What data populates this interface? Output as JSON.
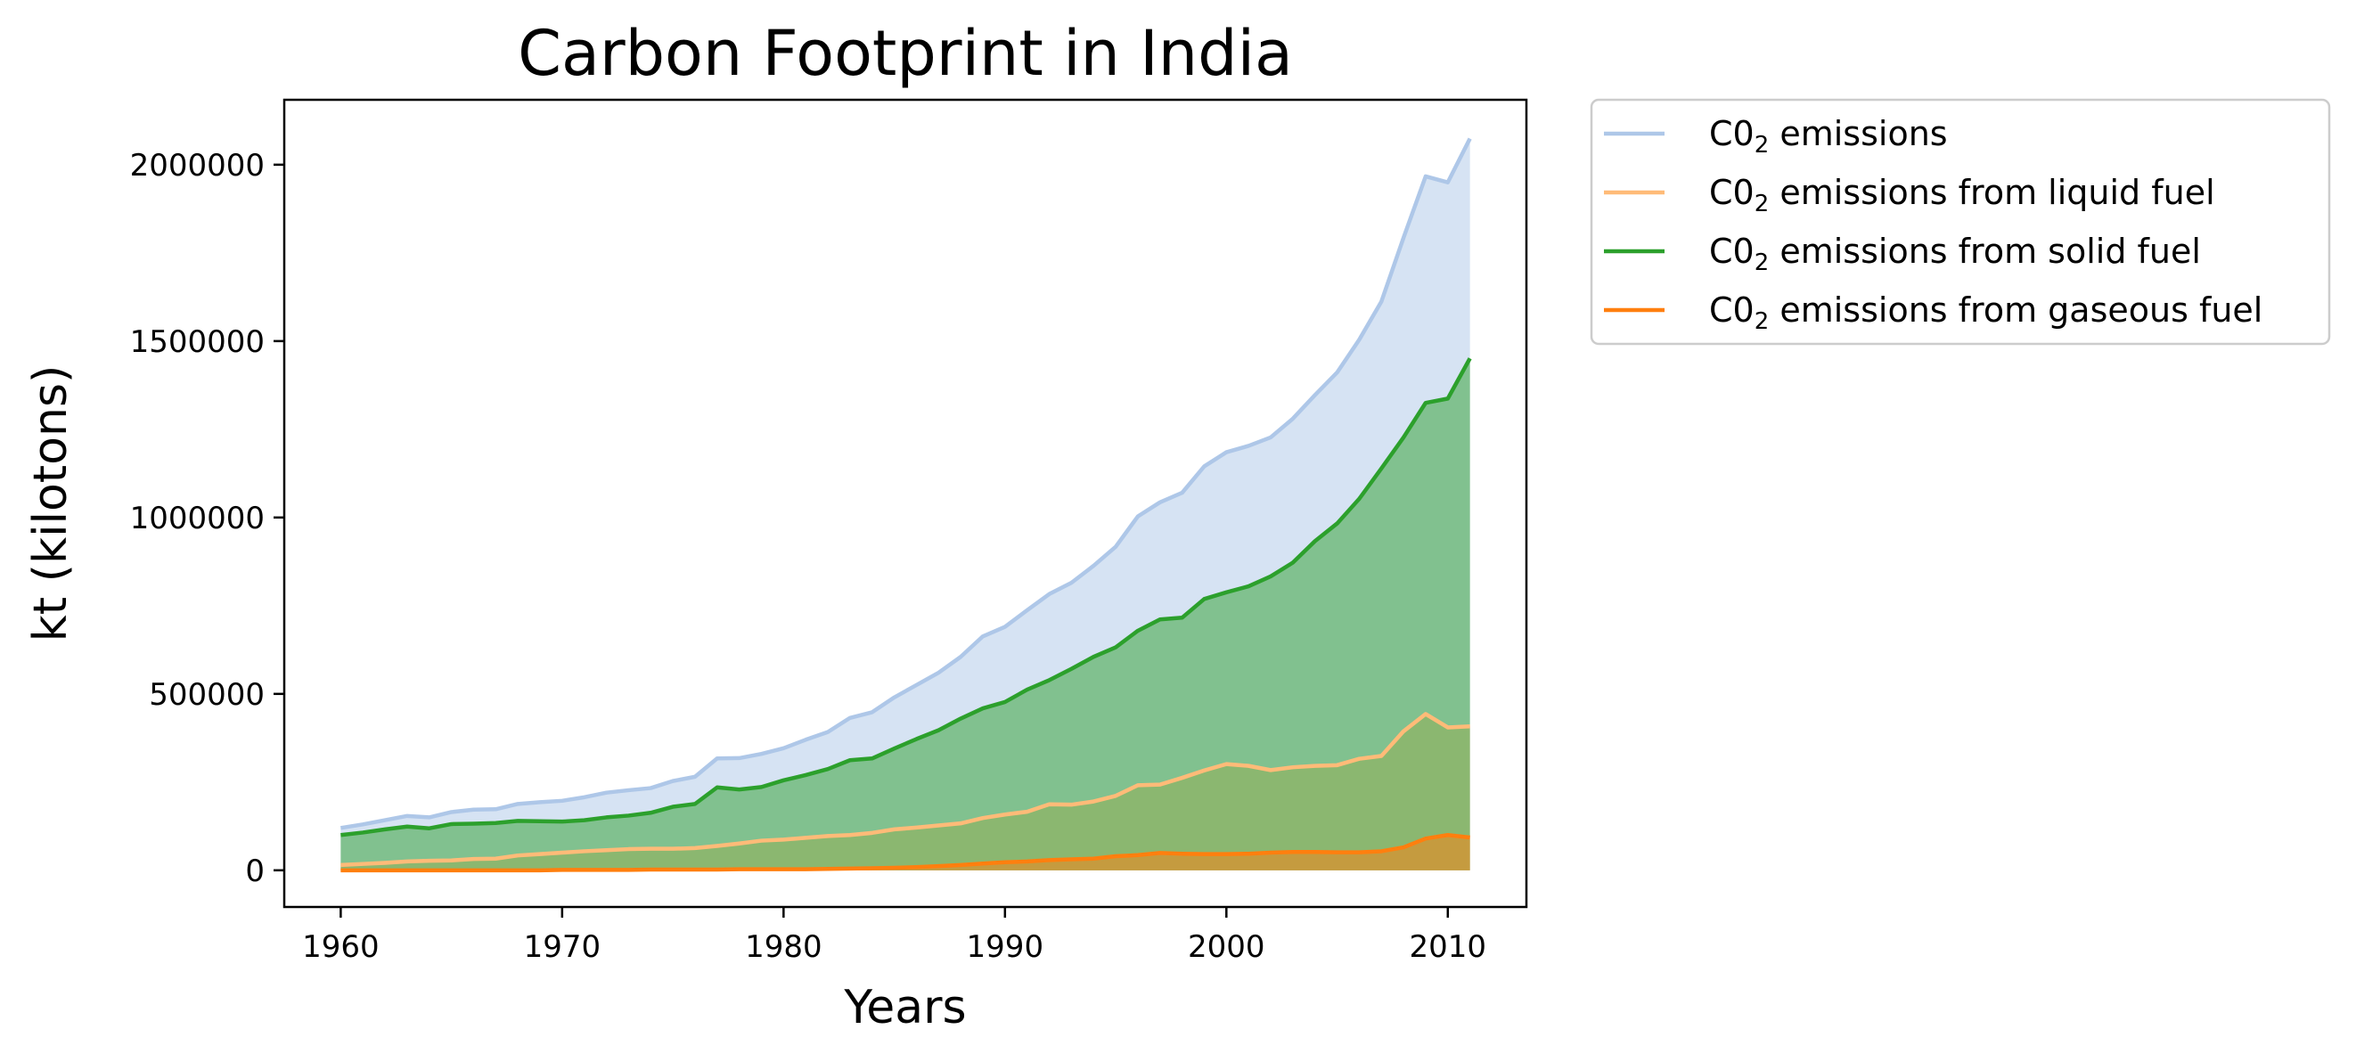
{
  "chart_data": {
    "type": "area",
    "title": "Carbon Footprint in India",
    "xlabel": "Years",
    "ylabel": "kt (kilotons)",
    "xlim": [
      1957.45,
      2013.55
    ],
    "ylim": [
      -104000,
      2184000
    ],
    "x_ticks": [
      1960,
      1970,
      1980,
      1990,
      2000,
      2010
    ],
    "y_ticks": [
      0,
      500000,
      1000000,
      1500000,
      2000000
    ],
    "grid": false,
    "legend_position": "outside-top-right",
    "x": [
      1960,
      1961,
      1962,
      1963,
      1964,
      1965,
      1966,
      1967,
      1968,
      1969,
      1970,
      1971,
      1972,
      1973,
      1974,
      1975,
      1976,
      1977,
      1978,
      1979,
      1980,
      1981,
      1982,
      1983,
      1984,
      1985,
      1986,
      1987,
      1988,
      1989,
      1990,
      1991,
      1992,
      1993,
      1994,
      1995,
      1996,
      1997,
      1998,
      1999,
      2000,
      2001,
      2002,
      2003,
      2004,
      2005,
      2006,
      2007,
      2008,
      2009,
      2010,
      2011
    ],
    "series": [
      {
        "name_prefix": "C0",
        "name_sub": "2",
        "name_suffix": " emissions",
        "color": "#aec7e8",
        "fill": "#aec7e8",
        "fill_opacity": 0.5,
        "values": [
          120000,
          130000,
          142000,
          154000,
          150000,
          165000,
          172000,
          173000,
          188000,
          193000,
          197000,
          207000,
          220000,
          227000,
          233000,
          253000,
          265000,
          317000,
          318000,
          330000,
          346000,
          370000,
          392000,
          432000,
          448000,
          490000,
          525000,
          560000,
          605000,
          663000,
          690000,
          737000,
          783000,
          815000,
          863000,
          917000,
          1003000,
          1043000,
          1070000,
          1145000,
          1185000,
          1203000,
          1227000,
          1280000,
          1347000,
          1411000,
          1504000,
          1612000,
          1793000,
          1967000,
          1950000,
          2074000
        ]
      },
      {
        "name_prefix": "C0",
        "name_sub": "2",
        "name_suffix": " emissions from liquid fuel",
        "color": "#ffbb78",
        "fill": "#ffbb78",
        "fill_opacity": 0.5,
        "values": [
          15000,
          18000,
          21000,
          25000,
          27000,
          28000,
          32000,
          33000,
          42000,
          46000,
          50000,
          54000,
          57000,
          60000,
          61000,
          61000,
          63000,
          69000,
          76000,
          84000,
          87000,
          92000,
          97000,
          100000,
          106000,
          116000,
          121000,
          127000,
          133000,
          148000,
          158000,
          166000,
          187000,
          186000,
          195000,
          211000,
          241000,
          243000,
          262000,
          283000,
          301000,
          296000,
          284000,
          292000,
          296000,
          298000,
          316000,
          324000,
          394000,
          443000,
          405000,
          408000
        ]
      },
      {
        "name_prefix": "C0",
        "name_sub": "2",
        "name_suffix": " emissions from solid fuel",
        "color": "#2ca02c",
        "fill": "#2ca02c",
        "fill_opacity": 0.5,
        "values": [
          100000,
          107000,
          116000,
          124000,
          119000,
          131000,
          132000,
          134000,
          140000,
          139000,
          138000,
          142000,
          150000,
          155000,
          163000,
          180000,
          188000,
          235000,
          229000,
          236000,
          255000,
          270000,
          287000,
          312000,
          317000,
          345000,
          372000,
          397000,
          430000,
          459000,
          477000,
          512000,
          539000,
          571000,
          605000,
          632000,
          679000,
          711000,
          716000,
          769000,
          788000,
          805000,
          833000,
          872000,
          933000,
          983000,
          1053000,
          1139000,
          1227000,
          1325000,
          1337000,
          1451000
        ]
      },
      {
        "name_prefix": "C0",
        "name_sub": "2",
        "name_suffix": " emissions from gaseous fuel",
        "color": "#ff7f0e",
        "fill": "#ff7f0e",
        "fill_opacity": 0.5,
        "values": [
          0,
          0,
          0,
          0,
          0,
          0,
          0,
          0,
          0,
          0,
          1000,
          1000,
          1000,
          1000,
          2000,
          2000,
          2000,
          2000,
          3000,
          3000,
          3000,
          3000,
          4000,
          5000,
          6000,
          7000,
          9000,
          12000,
          15000,
          19000,
          23000,
          25000,
          29000,
          31000,
          33000,
          40000,
          43000,
          49000,
          47000,
          46000,
          46000,
          47000,
          50000,
          52000,
          52000,
          51000,
          51000,
          54000,
          65000,
          90000,
          100000,
          93000
        ]
      }
    ]
  }
}
